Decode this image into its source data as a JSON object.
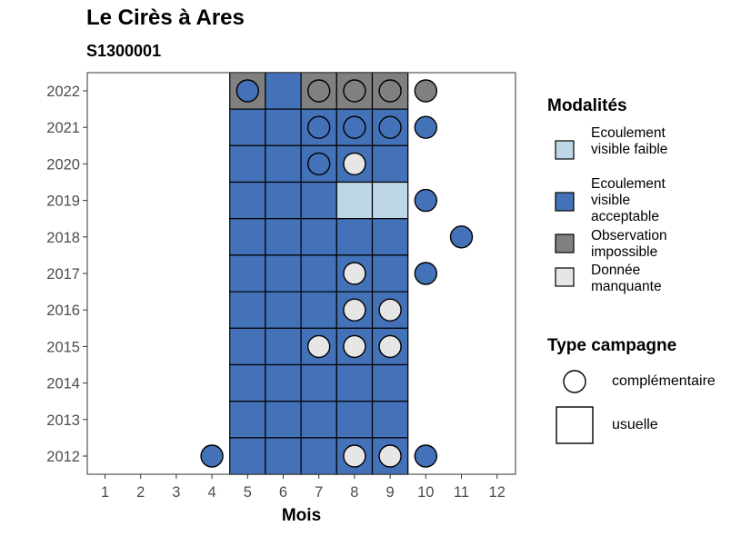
{
  "chart_data": {
    "type": "heatmap",
    "title": "Le Cirès à Ares",
    "subtitle": "S1300001",
    "xlabel": "Mois",
    "ylabel": "",
    "x_ticks": [
      "1",
      "2",
      "3",
      "4",
      "5",
      "6",
      "7",
      "8",
      "9",
      "10",
      "11",
      "12"
    ],
    "y_ticks": [
      "2012",
      "2013",
      "2014",
      "2015",
      "2016",
      "2017",
      "2018",
      "2019",
      "2020",
      "2021",
      "2022"
    ],
    "grid": false,
    "legend_position": "right",
    "legend": {
      "modalites_title": "Modalités",
      "modalites": [
        {
          "key": "faible",
          "label": "Ecoulement visible faible",
          "color": "#BDD7E7"
        },
        {
          "key": "acceptable",
          "label": "Ecoulement visible acceptable",
          "color": "#4472B8"
        },
        {
          "key": "impossible",
          "label": "Observation impossible",
          "color": "#808080"
        },
        {
          "key": "manquante",
          "label": "Donnée manquante",
          "color": "#E6E6E6"
        }
      ],
      "type_title": "Type campagne",
      "types": [
        {
          "key": "complementaire",
          "label": "complémentaire",
          "shape": "circle"
        },
        {
          "key": "usuelle",
          "label": "usuelle",
          "shape": "square"
        }
      ]
    },
    "observations": [
      {
        "year": 2022,
        "month": 5,
        "type": "usuelle",
        "modalite": "impossible"
      },
      {
        "year": 2022,
        "month": 5,
        "type": "complementaire",
        "modalite": "acceptable"
      },
      {
        "year": 2022,
        "month": 6,
        "type": "usuelle",
        "modalite": "acceptable"
      },
      {
        "year": 2022,
        "month": 7,
        "type": "usuelle",
        "modalite": "impossible"
      },
      {
        "year": 2022,
        "month": 7,
        "type": "complementaire",
        "modalite": "impossible"
      },
      {
        "year": 2022,
        "month": 8,
        "type": "usuelle",
        "modalite": "impossible"
      },
      {
        "year": 2022,
        "month": 8,
        "type": "complementaire",
        "modalite": "impossible"
      },
      {
        "year": 2022,
        "month": 9,
        "type": "usuelle",
        "modalite": "impossible"
      },
      {
        "year": 2022,
        "month": 9,
        "type": "complementaire",
        "modalite": "impossible"
      },
      {
        "year": 2022,
        "month": 10,
        "type": "complementaire",
        "modalite": "impossible"
      },
      {
        "year": 2021,
        "month": 5,
        "type": "usuelle",
        "modalite": "acceptable"
      },
      {
        "year": 2021,
        "month": 6,
        "type": "usuelle",
        "modalite": "acceptable"
      },
      {
        "year": 2021,
        "month": 7,
        "type": "usuelle",
        "modalite": "acceptable"
      },
      {
        "year": 2021,
        "month": 7,
        "type": "complementaire",
        "modalite": "acceptable"
      },
      {
        "year": 2021,
        "month": 8,
        "type": "usuelle",
        "modalite": "acceptable"
      },
      {
        "year": 2021,
        "month": 8,
        "type": "complementaire",
        "modalite": "acceptable"
      },
      {
        "year": 2021,
        "month": 9,
        "type": "usuelle",
        "modalite": "acceptable"
      },
      {
        "year": 2021,
        "month": 9,
        "type": "complementaire",
        "modalite": "acceptable"
      },
      {
        "year": 2021,
        "month": 10,
        "type": "complementaire",
        "modalite": "acceptable"
      },
      {
        "year": 2020,
        "month": 5,
        "type": "usuelle",
        "modalite": "acceptable"
      },
      {
        "year": 2020,
        "month": 6,
        "type": "usuelle",
        "modalite": "acceptable"
      },
      {
        "year": 2020,
        "month": 7,
        "type": "usuelle",
        "modalite": "acceptable"
      },
      {
        "year": 2020,
        "month": 7,
        "type": "complementaire",
        "modalite": "acceptable"
      },
      {
        "year": 2020,
        "month": 8,
        "type": "usuelle",
        "modalite": "acceptable"
      },
      {
        "year": 2020,
        "month": 8,
        "type": "complementaire",
        "modalite": "manquante"
      },
      {
        "year": 2020,
        "month": 9,
        "type": "usuelle",
        "modalite": "acceptable"
      },
      {
        "year": 2019,
        "month": 5,
        "type": "usuelle",
        "modalite": "acceptable"
      },
      {
        "year": 2019,
        "month": 6,
        "type": "usuelle",
        "modalite": "acceptable"
      },
      {
        "year": 2019,
        "month": 7,
        "type": "usuelle",
        "modalite": "acceptable"
      },
      {
        "year": 2019,
        "month": 8,
        "type": "usuelle",
        "modalite": "faible"
      },
      {
        "year": 2019,
        "month": 9,
        "type": "usuelle",
        "modalite": "faible"
      },
      {
        "year": 2019,
        "month": 10,
        "type": "complementaire",
        "modalite": "acceptable"
      },
      {
        "year": 2018,
        "month": 5,
        "type": "usuelle",
        "modalite": "acceptable"
      },
      {
        "year": 2018,
        "month": 6,
        "type": "usuelle",
        "modalite": "acceptable"
      },
      {
        "year": 2018,
        "month": 7,
        "type": "usuelle",
        "modalite": "acceptable"
      },
      {
        "year": 2018,
        "month": 8,
        "type": "usuelle",
        "modalite": "acceptable"
      },
      {
        "year": 2018,
        "month": 9,
        "type": "usuelle",
        "modalite": "acceptable"
      },
      {
        "year": 2018,
        "month": 11,
        "type": "complementaire",
        "modalite": "acceptable"
      },
      {
        "year": 2017,
        "month": 5,
        "type": "usuelle",
        "modalite": "acceptable"
      },
      {
        "year": 2017,
        "month": 6,
        "type": "usuelle",
        "modalite": "acceptable"
      },
      {
        "year": 2017,
        "month": 7,
        "type": "usuelle",
        "modalite": "acceptable"
      },
      {
        "year": 2017,
        "month": 8,
        "type": "usuelle",
        "modalite": "acceptable"
      },
      {
        "year": 2017,
        "month": 8,
        "type": "complementaire",
        "modalite": "manquante"
      },
      {
        "year": 2017,
        "month": 9,
        "type": "usuelle",
        "modalite": "acceptable"
      },
      {
        "year": 2017,
        "month": 10,
        "type": "complementaire",
        "modalite": "acceptable"
      },
      {
        "year": 2016,
        "month": 5,
        "type": "usuelle",
        "modalite": "acceptable"
      },
      {
        "year": 2016,
        "month": 6,
        "type": "usuelle",
        "modalite": "acceptable"
      },
      {
        "year": 2016,
        "month": 7,
        "type": "usuelle",
        "modalite": "acceptable"
      },
      {
        "year": 2016,
        "month": 8,
        "type": "usuelle",
        "modalite": "acceptable"
      },
      {
        "year": 2016,
        "month": 8,
        "type": "complementaire",
        "modalite": "manquante"
      },
      {
        "year": 2016,
        "month": 9,
        "type": "usuelle",
        "modalite": "acceptable"
      },
      {
        "year": 2016,
        "month": 9,
        "type": "complementaire",
        "modalite": "manquante"
      },
      {
        "year": 2015,
        "month": 5,
        "type": "usuelle",
        "modalite": "acceptable"
      },
      {
        "year": 2015,
        "month": 6,
        "type": "usuelle",
        "modalite": "acceptable"
      },
      {
        "year": 2015,
        "month": 7,
        "type": "usuelle",
        "modalite": "acceptable"
      },
      {
        "year": 2015,
        "month": 7,
        "type": "complementaire",
        "modalite": "manquante"
      },
      {
        "year": 2015,
        "month": 8,
        "type": "usuelle",
        "modalite": "acceptable"
      },
      {
        "year": 2015,
        "month": 8,
        "type": "complementaire",
        "modalite": "manquante"
      },
      {
        "year": 2015,
        "month": 9,
        "type": "usuelle",
        "modalite": "acceptable"
      },
      {
        "year": 2015,
        "month": 9,
        "type": "complementaire",
        "modalite": "manquante"
      },
      {
        "year": 2014,
        "month": 5,
        "type": "usuelle",
        "modalite": "acceptable"
      },
      {
        "year": 2014,
        "month": 6,
        "type": "usuelle",
        "modalite": "acceptable"
      },
      {
        "year": 2014,
        "month": 7,
        "type": "usuelle",
        "modalite": "acceptable"
      },
      {
        "year": 2014,
        "month": 8,
        "type": "usuelle",
        "modalite": "acceptable"
      },
      {
        "year": 2014,
        "month": 9,
        "type": "usuelle",
        "modalite": "acceptable"
      },
      {
        "year": 2013,
        "month": 5,
        "type": "usuelle",
        "modalite": "acceptable"
      },
      {
        "year": 2013,
        "month": 6,
        "type": "usuelle",
        "modalite": "acceptable"
      },
      {
        "year": 2013,
        "month": 7,
        "type": "usuelle",
        "modalite": "acceptable"
      },
      {
        "year": 2013,
        "month": 8,
        "type": "usuelle",
        "modalite": "acceptable"
      },
      {
        "year": 2013,
        "month": 9,
        "type": "usuelle",
        "modalite": "acceptable"
      },
      {
        "year": 2012,
        "month": 4,
        "type": "complementaire",
        "modalite": "acceptable"
      },
      {
        "year": 2012,
        "month": 5,
        "type": "usuelle",
        "modalite": "acceptable"
      },
      {
        "year": 2012,
        "month": 6,
        "type": "usuelle",
        "modalite": "acceptable"
      },
      {
        "year": 2012,
        "month": 7,
        "type": "usuelle",
        "modalite": "acceptable"
      },
      {
        "year": 2012,
        "month": 8,
        "type": "usuelle",
        "modalite": "acceptable"
      },
      {
        "year": 2012,
        "month": 8,
        "type": "complementaire",
        "modalite": "manquante"
      },
      {
        "year": 2012,
        "month": 9,
        "type": "usuelle",
        "modalite": "acceptable"
      },
      {
        "year": 2012,
        "month": 9,
        "type": "complementaire",
        "modalite": "manquante"
      },
      {
        "year": 2012,
        "month": 10,
        "type": "complementaire",
        "modalite": "acceptable"
      }
    ]
  }
}
